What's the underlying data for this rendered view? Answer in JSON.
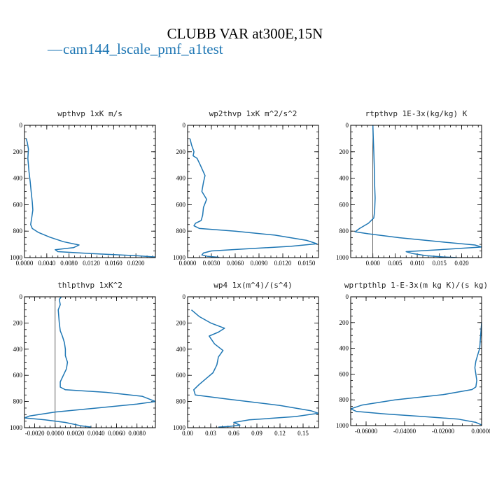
{
  "figure": {
    "title": "CLUBB VAR at300E,15N",
    "legend": {
      "marker": "—",
      "label": "cam144_lscale_pmf_a1test",
      "color": "#1f77b4"
    },
    "line_color": "#1f77b4"
  },
  "chart_data": [
    {
      "type": "line",
      "title": "wpthvp  1xK m/s",
      "xlim": [
        0,
        0.0235
      ],
      "ylim": [
        1000,
        0
      ],
      "xticks": [
        0.0,
        0.004,
        0.008,
        0.012,
        0.016,
        0.02
      ],
      "xtick_labels": [
        "0.0000",
        "0.0040",
        "0.0080",
        "0.0120",
        "0.0160",
        "0.0200"
      ],
      "yticks": [
        0,
        200,
        400,
        600,
        800,
        1000
      ],
      "ytick_labels": [
        "0",
        "200",
        "400",
        "600",
        "800",
        "1000"
      ],
      "series": [
        {
          "x": [
            0.0003,
            0.0005,
            0.0007,
            0.0006,
            0.0008,
            0.001,
            0.0012,
            0.0014,
            0.0015,
            0.0013,
            0.0011,
            0.0014,
            0.0025,
            0.0045,
            0.007,
            0.0098,
            0.0088,
            0.0055,
            0.006,
            0.012,
            0.02,
            0.0235
          ],
          "y": [
            100,
            130,
            180,
            250,
            350,
            420,
            500,
            580,
            640,
            700,
            750,
            780,
            810,
            845,
            880,
            905,
            925,
            940,
            955,
            970,
            985,
            995
          ]
        }
      ]
    },
    {
      "type": "line",
      "title": "wp2thvp  1xK m^2/s^2",
      "xlim": [
        0,
        0.0165
      ],
      "ylim": [
        1000,
        0
      ],
      "xticks": [
        0.0,
        0.003,
        0.006,
        0.009,
        0.012,
        0.015
      ],
      "xtick_labels": [
        "0.0000",
        "0.0030",
        "0.0060",
        "0.0090",
        "0.0120",
        "0.0150"
      ],
      "yticks": [
        0,
        200,
        400,
        600,
        800,
        1000
      ],
      "ytick_labels": [
        "0",
        "200",
        "400",
        "600",
        "800",
        "1000"
      ],
      "series": [
        {
          "x": [
            0.0003,
            0.0005,
            0.0008,
            0.0007,
            0.0012,
            0.0016,
            0.0022,
            0.002,
            0.0018,
            0.0024,
            0.002,
            0.0019,
            0.0017,
            0.001,
            0.0008,
            0.0015,
            0.006,
            0.011,
            0.015,
            0.0163,
            0.013,
            0.007,
            0.003,
            0.002,
            0.0018,
            0.0025,
            0.004
          ],
          "y": [
            100,
            150,
            200,
            230,
            250,
            300,
            380,
            430,
            500,
            560,
            620,
            680,
            720,
            740,
            760,
            780,
            800,
            830,
            870,
            895,
            915,
            935,
            950,
            965,
            980,
            990,
            998
          ]
        }
      ]
    },
    {
      "type": "line",
      "title": "rtpthvp  1E-3x(kg/kg) K",
      "xlim": [
        -0.005,
        0.0245
      ],
      "ylim": [
        1000,
        0
      ],
      "xticks": [
        0.0,
        0.005,
        0.01,
        0.015,
        0.02
      ],
      "xtick_labels": [
        "0.000",
        "0.005",
        "0.010",
        "0.015",
        "0.020"
      ],
      "yticks": [
        0,
        200,
        400,
        600,
        800,
        1000
      ],
      "ytick_labels": [
        "0",
        "200",
        "400",
        "600",
        "800",
        "1000"
      ],
      "series": [
        {
          "x": [
            0.0,
            0.0001,
            0.0002,
            0.0003,
            0.0004,
            0.0005,
            0.0004,
            0.0002,
            -0.001,
            -0.003,
            -0.004,
            -0.001,
            0.006,
            0.015,
            0.023,
            0.0245,
            0.015,
            0.0075,
            0.009,
            0.012,
            0.016,
            0.019
          ],
          "y": [
            0,
            100,
            200,
            300,
            450,
            550,
            650,
            700,
            740,
            780,
            805,
            820,
            850,
            880,
            905,
            920,
            940,
            955,
            970,
            985,
            995,
            1000
          ]
        }
      ]
    },
    {
      "type": "line",
      "title": "thlpthvp  1xK^2",
      "xlim": [
        -0.003,
        0.0098
      ],
      "ylim": [
        1000,
        0
      ],
      "xticks": [
        -0.002,
        0.0,
        0.002,
        0.004,
        0.006,
        0.008
      ],
      "xtick_labels": [
        "-0.0020",
        "0.0000",
        "0.0020",
        "0.0040",
        "0.0060",
        "0.0080"
      ],
      "yticks": [
        0,
        200,
        400,
        600,
        800,
        1000
      ],
      "ytick_labels": [
        "0",
        "200",
        "400",
        "600",
        "800",
        "1000"
      ],
      "series": [
        {
          "x": [
            0.0006,
            0.0004,
            0.0005,
            0.0003,
            0.0004,
            0.0005,
            0.0007,
            0.0009,
            0.001,
            0.001,
            0.0012,
            0.0011,
            0.0008,
            0.0005,
            0.0005,
            0.001,
            0.005,
            0.0085,
            0.0098,
            0.008,
            0.004,
            0.0,
            -0.0025,
            -0.003,
            -0.001,
            0.001,
            0.0025,
            0.0035
          ],
          "y": [
            0,
            20,
            60,
            100,
            200,
            260,
            300,
            350,
            400,
            450,
            500,
            550,
            600,
            650,
            690,
            710,
            730,
            760,
            800,
            820,
            850,
            880,
            910,
            925,
            940,
            960,
            985,
            995
          ]
        }
      ]
    },
    {
      "type": "line",
      "title": "wp4  1x(m^4)/(s^4)",
      "xlim": [
        0,
        0.17
      ],
      "ylim": [
        1000,
        0
      ],
      "xticks": [
        0.0,
        0.03,
        0.06,
        0.09,
        0.12,
        0.15
      ],
      "xtick_labels": [
        "0.00",
        "0.03",
        "0.06",
        "0.09",
        "0.12",
        "0.15"
      ],
      "yticks": [
        0,
        200,
        400,
        600,
        800,
        1000
      ],
      "ytick_labels": [
        "0",
        "200",
        "400",
        "600",
        "800",
        "1000"
      ],
      "series": [
        {
          "x": [
            0.005,
            0.015,
            0.03,
            0.048,
            0.04,
            0.028,
            0.035,
            0.046,
            0.04,
            0.038,
            0.033,
            0.025,
            0.015,
            0.008,
            0.01,
            0.05,
            0.12,
            0.16,
            0.17,
            0.14,
            0.08,
            0.06,
            0.068,
            0.055,
            0.04
          ],
          "y": [
            100,
            150,
            200,
            240,
            270,
            300,
            360,
            410,
            460,
            520,
            580,
            620,
            670,
            710,
            750,
            780,
            830,
            870,
            890,
            915,
            940,
            960,
            980,
            990,
            995
          ]
        }
      ]
    },
    {
      "type": "line",
      "title": "wprtpthlp  1-E-3x(m kg K)/(s kg)",
      "xlim": [
        -0.068,
        0.0
      ],
      "ylim": [
        1000,
        0
      ],
      "xticks": [
        -0.06,
        -0.04,
        -0.02,
        0.0
      ],
      "xtick_labels": [
        "-0.06000",
        "-0.04000",
        "-0.02000",
        "0.00000"
      ],
      "yticks": [
        0,
        200,
        400,
        600,
        800,
        1000
      ],
      "ytick_labels": [
        "0",
        "200",
        "400",
        "600",
        "800",
        "1000"
      ],
      "series": [
        {
          "x": [
            0.0,
            -0.0005,
            -0.001,
            -0.002,
            -0.003,
            -0.0035,
            -0.003,
            -0.0025,
            -0.003,
            -0.005,
            -0.02,
            -0.045,
            -0.062,
            -0.068,
            -0.065,
            -0.05,
            -0.03,
            -0.012,
            -0.003,
            0.0
          ],
          "y": [
            200,
            300,
            400,
            450,
            500,
            550,
            600,
            650,
            700,
            720,
            760,
            800,
            840,
            870,
            890,
            910,
            930,
            950,
            975,
            995
          ]
        }
      ]
    }
  ]
}
